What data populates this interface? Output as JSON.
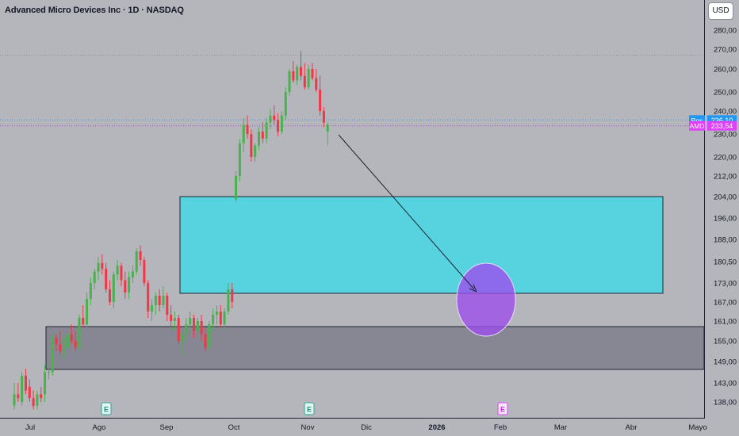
{
  "header": {
    "title": "Advanced Micro Devices Inc · 1D · NASDAQ",
    "currency_button": "USD"
  },
  "colors": {
    "background": "#b4b6bc",
    "up_candle": "#4caf50",
    "down_candle": "#f23645",
    "cyan_zone": "#57d3e0",
    "gray_zone": "#868792",
    "circle": "#9c4dec",
    "pos_label": "#2196f3",
    "amd_label": "#e040fb"
  },
  "chart_data": {
    "type": "candlestick",
    "title": "Advanced Micro Devices Inc · 1D · NASDAQ",
    "y_axis_labels": [
      "280,00",
      "270,00",
      "260,00",
      "250,00",
      "240,00",
      "230,00",
      "220,00",
      "212,00",
      "204,00",
      "196,00",
      "188,00",
      "180,50",
      "173,00",
      "167,00",
      "161,00",
      "155,00",
      "149,00",
      "143,00",
      "138,00"
    ],
    "x_axis_labels": [
      "Jul",
      "Ago",
      "Sep",
      "Oct",
      "Nov",
      "Dic",
      "2026",
      "Feb",
      "Mar",
      "Abr",
      "Mayo"
    ],
    "x_axis_bold": [
      "2026"
    ],
    "price_labels": [
      {
        "name": "Pos",
        "value": "236,10",
        "color": "#2196f3"
      },
      {
        "name": "AMD",
        "value": "233,54",
        "color": "#e040fb"
      }
    ],
    "earnings_markers": [
      {
        "label": "E",
        "month": "Ago"
      },
      {
        "label": "E",
        "month": "Nov"
      },
      {
        "label": "E",
        "month": "Feb"
      }
    ],
    "ohlc": [
      [
        137,
        143,
        136,
        140
      ],
      [
        140,
        143,
        138,
        139
      ],
      [
        138,
        146,
        137,
        145
      ],
      [
        145,
        147,
        140,
        141
      ],
      [
        142,
        144,
        138,
        139
      ],
      [
        139,
        141,
        136,
        137
      ],
      [
        137,
        141,
        136,
        140
      ],
      [
        140,
        142,
        138,
        139
      ],
      [
        140,
        148,
        138,
        146
      ],
      [
        146,
        149,
        144,
        146
      ],
      [
        146,
        157,
        145,
        156
      ],
      [
        156,
        157,
        152,
        154
      ],
      [
        154,
        158,
        151,
        152
      ],
      [
        152,
        156,
        150,
        153
      ],
      [
        153,
        158,
        151,
        157
      ],
      [
        157,
        160,
        154,
        155
      ],
      [
        155,
        158,
        152,
        153
      ],
      [
        153,
        163,
        152,
        162
      ],
      [
        162,
        166,
        159,
        160
      ],
      [
        160,
        170,
        158,
        168
      ],
      [
        168,
        175,
        166,
        173
      ],
      [
        173,
        178,
        171,
        177
      ],
      [
        177,
        182,
        174,
        180
      ],
      [
        180,
        183,
        176,
        178
      ],
      [
        178,
        180,
        170,
        171
      ],
      [
        171,
        174,
        166,
        167
      ],
      [
        167,
        177,
        165,
        176
      ],
      [
        176,
        181,
        174,
        179
      ],
      [
        179,
        180,
        172,
        174
      ],
      [
        174,
        177,
        168,
        170
      ],
      [
        170,
        177,
        168,
        175
      ],
      [
        175,
        179,
        173,
        177
      ],
      [
        177,
        185,
        176,
        184
      ],
      [
        184,
        186,
        179,
        181
      ],
      [
        181,
        182,
        172,
        173
      ],
      [
        173,
        174,
        162,
        164
      ],
      [
        164,
        168,
        161,
        166
      ],
      [
        166,
        170,
        163,
        169
      ],
      [
        169,
        171,
        164,
        166
      ],
      [
        166,
        172,
        165,
        169
      ],
      [
        169,
        170,
        161,
        163
      ],
      [
        163,
        166,
        159,
        161
      ],
      [
        161,
        164,
        158,
        162
      ],
      [
        162,
        163,
        154,
        155
      ],
      [
        155,
        158,
        151,
        157
      ],
      [
        157,
        162,
        155,
        160
      ],
      [
        160,
        164,
        158,
        162
      ],
      [
        162,
        163,
        156,
        158
      ],
      [
        158,
        162,
        156,
        161
      ],
      [
        161,
        163,
        155,
        157
      ],
      [
        157,
        159,
        152,
        153
      ],
      [
        153,
        161,
        152,
        160
      ],
      [
        160,
        165,
        158,
        163
      ],
      [
        163,
        166,
        160,
        164
      ],
      [
        164,
        166,
        159,
        160
      ],
      [
        160,
        165,
        158,
        164
      ],
      [
        164,
        173,
        163,
        171
      ],
      [
        171,
        173,
        165,
        167
      ],
      [
        203,
        214,
        202,
        212
      ],
      [
        212,
        228,
        210,
        226
      ],
      [
        226,
        237,
        222,
        234
      ],
      [
        234,
        238,
        228,
        230
      ],
      [
        230,
        232,
        218,
        220
      ],
      [
        220,
        226,
        218,
        225
      ],
      [
        225,
        233,
        223,
        231
      ],
      [
        231,
        235,
        226,
        228
      ],
      [
        228,
        237,
        226,
        235
      ],
      [
        235,
        241,
        232,
        238
      ],
      [
        238,
        243,
        234,
        236
      ],
      [
        236,
        239,
        229,
        231
      ],
      [
        231,
        240,
        230,
        238
      ],
      [
        238,
        252,
        236,
        250
      ],
      [
        250,
        260,
        248,
        259
      ],
      [
        259,
        264,
        254,
        255
      ],
      [
        255,
        262,
        253,
        261
      ],
      [
        261,
        269,
        255,
        257
      ],
      [
        257,
        263,
        251,
        252
      ],
      [
        252,
        262,
        251,
        260
      ],
      [
        260,
        263,
        255,
        256
      ],
      [
        256,
        260,
        250,
        251
      ],
      [
        251,
        257,
        238,
        240
      ],
      [
        240,
        242,
        233,
        235
      ],
      [
        231,
        235,
        225,
        234
      ]
    ]
  }
}
